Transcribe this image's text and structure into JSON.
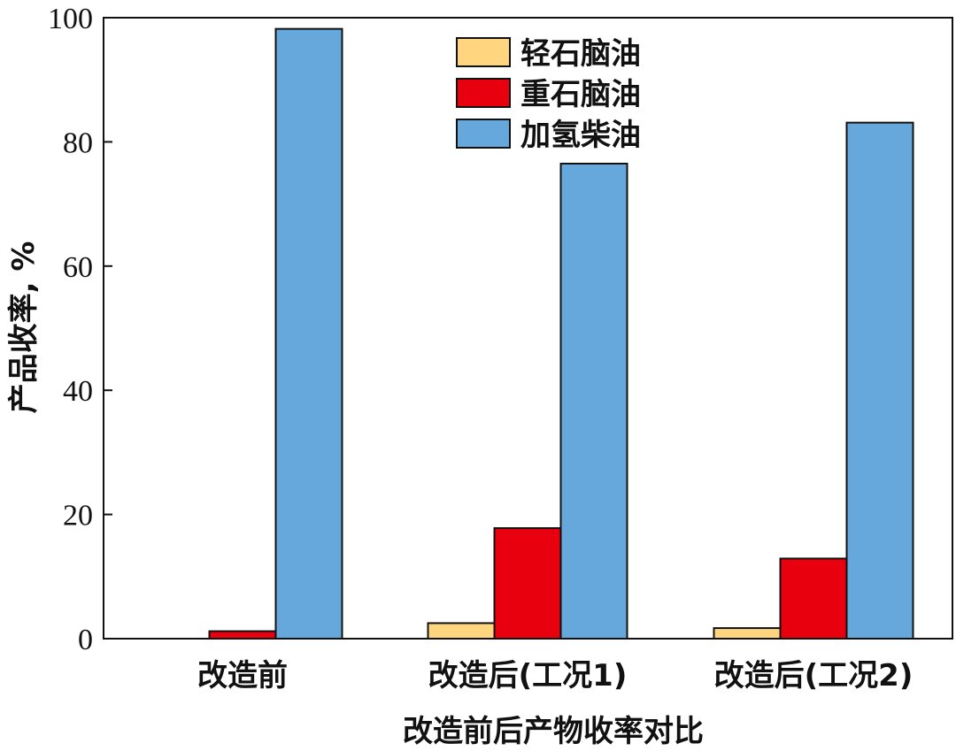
{
  "chart_data": {
    "type": "bar",
    "title": "",
    "xlabel": "改造前后产物收率对比",
    "ylabel": "产品收率, %",
    "ylim": [
      0,
      100
    ],
    "yticks": [
      0,
      20,
      40,
      60,
      80,
      100
    ],
    "categories": [
      "改造前",
      "改造后(工况1)",
      "改造后(工况2)"
    ],
    "series": [
      {
        "name": "轻石脑油",
        "color": "#FFD67F",
        "values": [
          0,
          2.5,
          1.7
        ]
      },
      {
        "name": "重石脑油",
        "color": "#E8000F",
        "values": [
          1.2,
          17.8,
          12.9
        ]
      },
      {
        "name": "加氢柴油",
        "color": "#66A8DC",
        "values": [
          98.2,
          76.5,
          83.1
        ]
      }
    ],
    "legend_position": "top-center",
    "grid": false
  }
}
